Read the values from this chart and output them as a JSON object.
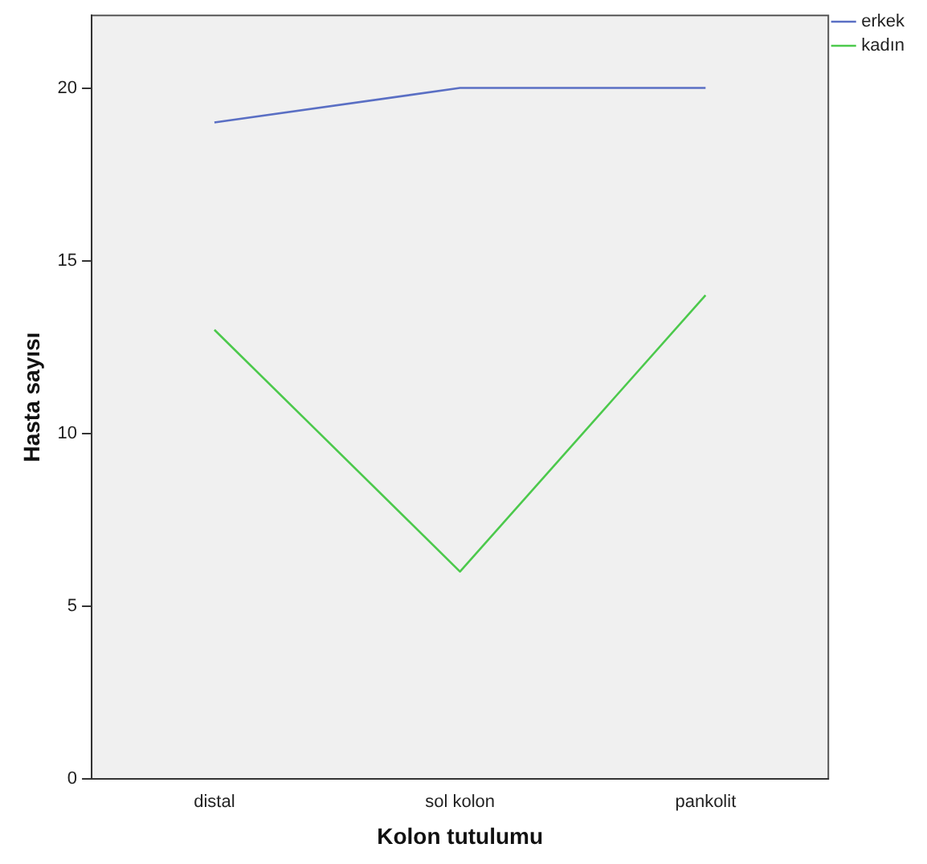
{
  "chart_data": {
    "type": "line",
    "xlabel": "Kolon tutulumu",
    "ylabel": "Hasta sayısı",
    "categories": [
      "distal",
      "sol kolon",
      "pankolit"
    ],
    "series": [
      {
        "name": "erkek",
        "color": "#5a6fc4",
        "values": [
          19,
          20,
          20
        ]
      },
      {
        "name": "kadın",
        "color": "#4cc94c",
        "values": [
          13,
          6,
          14
        ]
      }
    ],
    "ylim": [
      0,
      22.1
    ],
    "yticks": [
      0,
      5,
      10,
      15,
      20
    ],
    "grid": false,
    "legend": "top right",
    "marker": "none",
    "line_style": "solid"
  }
}
